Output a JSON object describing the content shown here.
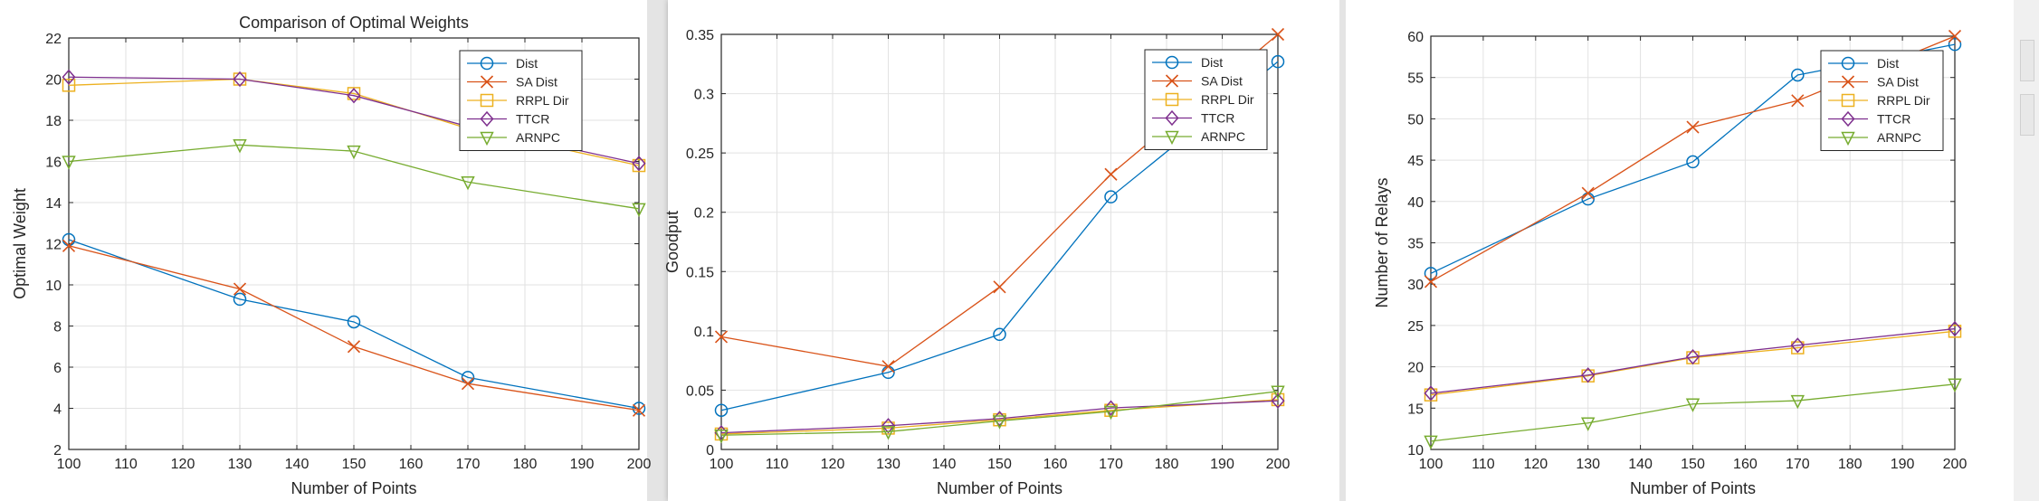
{
  "colors": {
    "blue": "#0072BD",
    "orange": "#D95319",
    "yellow": "#EDB120",
    "purple": "#7E2F8E",
    "green": "#77AC30",
    "grid": "#e2e2e2",
    "axis": "#262626"
  },
  "chart_data": [
    {
      "type": "line",
      "title": "Comparison of Optimal Weights",
      "xlabel": "Number of Points",
      "ylabel": "Optimal Weight",
      "x": [
        100,
        130,
        150,
        170,
        200
      ],
      "xlim": [
        100,
        200
      ],
      "ylim": [
        2,
        22
      ],
      "xticks": [
        100,
        110,
        120,
        130,
        140,
        150,
        160,
        170,
        180,
        190,
        200
      ],
      "yticks": [
        2,
        4,
        6,
        8,
        10,
        12,
        14,
        16,
        18,
        20,
        22
      ],
      "grid": true,
      "legend_position": "top-right",
      "series": [
        {
          "name": "Dist",
          "marker": "circle",
          "color": "#0072BD",
          "values": [
            12.2,
            9.3,
            8.2,
            5.5,
            4.0
          ]
        },
        {
          "name": "SA Dist",
          "marker": "x",
          "color": "#D95319",
          "values": [
            11.9,
            9.8,
            7.0,
            5.2,
            3.9
          ]
        },
        {
          "name": "RRPL Dir",
          "marker": "square",
          "color": "#EDB120",
          "values": [
            19.7,
            20.0,
            19.3,
            17.6,
            15.8
          ]
        },
        {
          "name": "TTCR",
          "marker": "diamond",
          "color": "#7E2F8E",
          "values": [
            20.1,
            20.0,
            19.2,
            17.7,
            15.9
          ]
        },
        {
          "name": "ARNPC",
          "marker": "triangle-down",
          "color": "#77AC30",
          "values": [
            16.0,
            16.8,
            16.5,
            15.0,
            13.7
          ]
        }
      ]
    },
    {
      "type": "line",
      "title": "",
      "xlabel": "Number of Points",
      "ylabel": "Goodput",
      "x": [
        100,
        130,
        150,
        170,
        200
      ],
      "xlim": [
        100,
        200
      ],
      "ylim": [
        0,
        0.35
      ],
      "xticks": [
        100,
        110,
        120,
        130,
        140,
        150,
        160,
        170,
        180,
        190,
        200
      ],
      "yticks": [
        0,
        0.05,
        0.1,
        0.15,
        0.2,
        0.25,
        0.3,
        0.35
      ],
      "ytick_labels": [
        "0",
        "0.05",
        "0.1",
        "0.15",
        "0.2",
        "0.25",
        "0.3",
        "0.35"
      ],
      "grid": true,
      "legend_position": "top-right",
      "series": [
        {
          "name": "Dist",
          "marker": "circle",
          "color": "#0072BD",
          "values": [
            0.033,
            0.065,
            0.097,
            0.213,
            0.327
          ]
        },
        {
          "name": "SA Dist",
          "marker": "x",
          "color": "#D95319",
          "values": [
            0.095,
            0.07,
            0.137,
            0.232,
            0.35
          ]
        },
        {
          "name": "RRPL Dir",
          "marker": "square",
          "color": "#EDB120",
          "values": [
            0.013,
            0.018,
            0.025,
            0.033,
            0.042
          ]
        },
        {
          "name": "TTCR",
          "marker": "diamond",
          "color": "#7E2F8E",
          "values": [
            0.014,
            0.02,
            0.026,
            0.035,
            0.041
          ]
        },
        {
          "name": "ARNPC",
          "marker": "triangle-down",
          "color": "#77AC30",
          "values": [
            0.012,
            0.015,
            0.024,
            0.032,
            0.049
          ]
        }
      ]
    },
    {
      "type": "line",
      "title": "",
      "xlabel": "Number of Points",
      "ylabel": "Number of Relays",
      "x": [
        100,
        130,
        150,
        170,
        200
      ],
      "xlim": [
        100,
        200
      ],
      "ylim": [
        10,
        60
      ],
      "xticks": [
        100,
        110,
        120,
        130,
        140,
        150,
        160,
        170,
        180,
        190,
        200
      ],
      "yticks": [
        10,
        15,
        20,
        25,
        30,
        35,
        40,
        45,
        50,
        55,
        60
      ],
      "grid": true,
      "legend_position": "top-right",
      "series": [
        {
          "name": "Dist",
          "marker": "circle",
          "color": "#0072BD",
          "values": [
            31.3,
            40.3,
            44.8,
            55.3,
            59.0
          ]
        },
        {
          "name": "SA Dist",
          "marker": "x",
          "color": "#D95319",
          "values": [
            30.3,
            41.0,
            49.0,
            52.2,
            60.0
          ]
        },
        {
          "name": "RRPL Dir",
          "marker": "square",
          "color": "#EDB120",
          "values": [
            16.6,
            18.9,
            21.1,
            22.3,
            24.3
          ]
        },
        {
          "name": "TTCR",
          "marker": "diamond",
          "color": "#7E2F8E",
          "values": [
            16.8,
            19.0,
            21.2,
            22.6,
            24.6
          ]
        },
        {
          "name": "ARNPC",
          "marker": "triangle-down",
          "color": "#77AC30",
          "values": [
            11.0,
            13.2,
            15.5,
            15.9,
            17.9
          ]
        }
      ]
    }
  ]
}
